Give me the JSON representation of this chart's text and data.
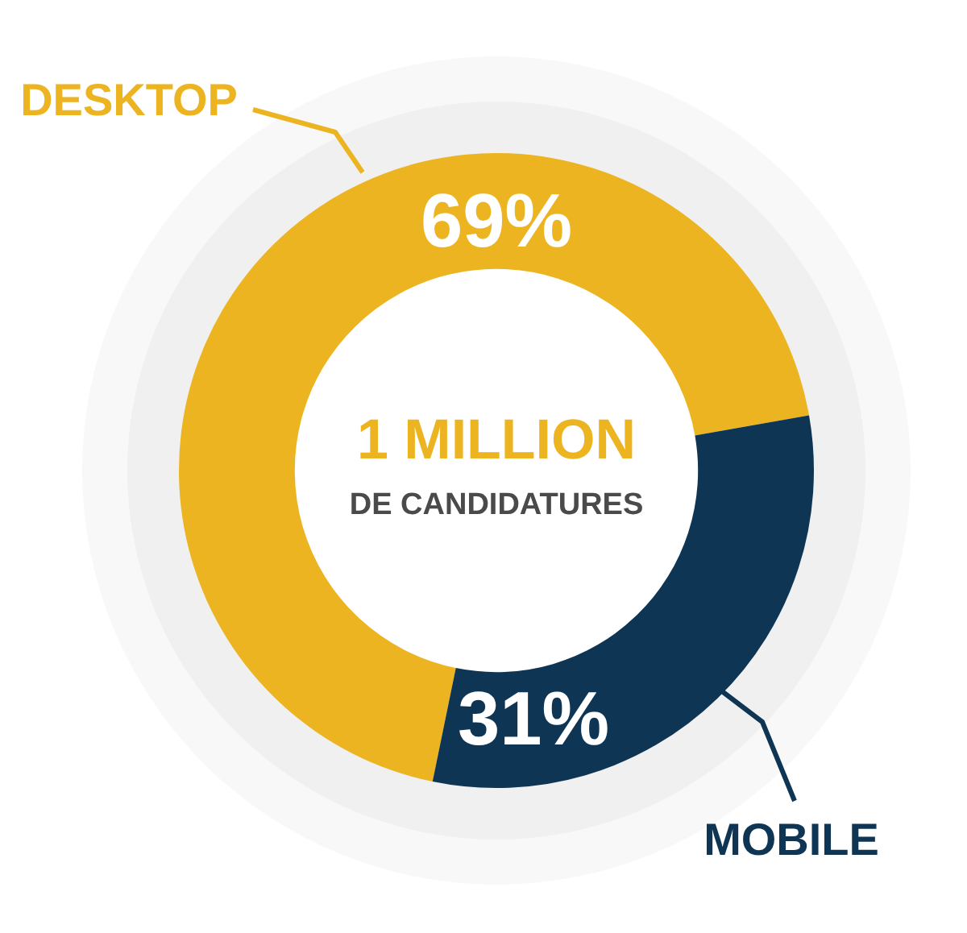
{
  "chart_data": {
    "type": "donut",
    "categories": [
      "DESKTOP",
      "MOBILE"
    ],
    "values": [
      69,
      31
    ],
    "colors": [
      "#ecb421",
      "#0f3554"
    ],
    "value_labels": [
      "69%",
      "31%"
    ],
    "annotations": [
      "1 MILLION",
      "DE CANDIDATURES"
    ]
  }
}
